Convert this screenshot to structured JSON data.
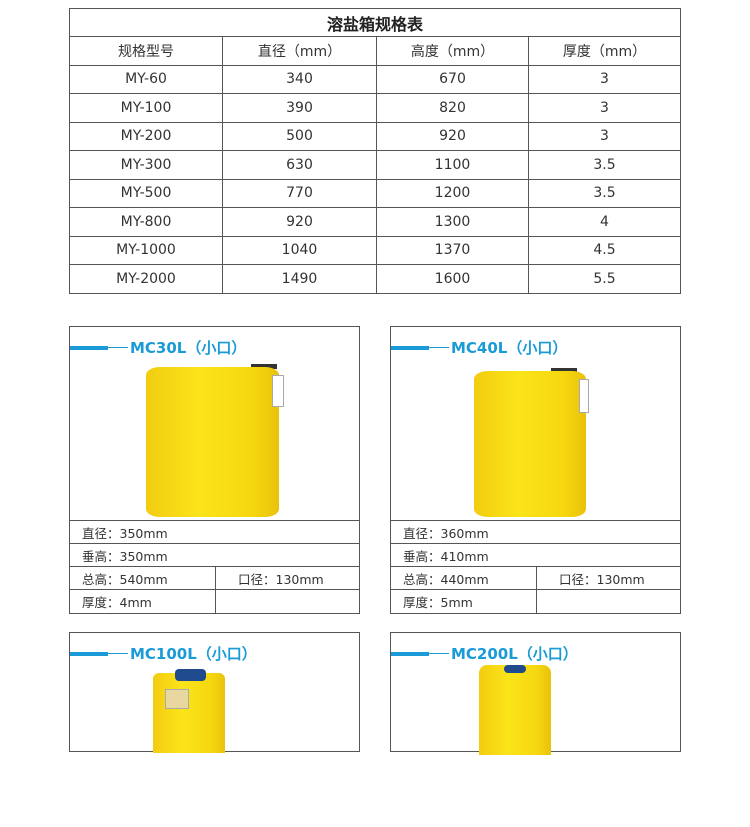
{
  "table": {
    "title": "溶盐箱规格表",
    "headers": [
      "规格型号",
      "直径（mm）",
      "高度（mm）",
      "厚度（mm）"
    ],
    "rows": [
      [
        "MY-60",
        "340",
        "670",
        "3"
      ],
      [
        "MY-100",
        "390",
        "820",
        "3"
      ],
      [
        "MY-200",
        "500",
        "920",
        "3"
      ],
      [
        "MY-300",
        "630",
        "1100",
        "3.5"
      ],
      [
        "MY-500",
        "770",
        "1200",
        "3.5"
      ],
      [
        "MY-800",
        "920",
        "1300",
        "4"
      ],
      [
        "MY-1000",
        "1040",
        "1370",
        "4.5"
      ],
      [
        "MY-2000",
        "1490",
        "1600",
        "5.5"
      ]
    ]
  },
  "cards": [
    {
      "title": "MC30L（小口）",
      "diameter": "直径：350mm",
      "vertical_height": "垂高：350mm",
      "total_height": "总高：540mm",
      "mouth": "口径：130mm",
      "thickness": "厚度：4mm"
    },
    {
      "title": "MC40L（小口）",
      "diameter": "直径：360mm",
      "vertical_height": "垂高：410mm",
      "total_height": "总高：440mm",
      "mouth": "口径：130mm",
      "thickness": "厚度：5mm"
    },
    {
      "title": "MC100L（小口）"
    },
    {
      "title": "MC200L（小口）"
    }
  ],
  "colors": {
    "accent": "#1a9bd7",
    "tank": "#f8da12"
  }
}
